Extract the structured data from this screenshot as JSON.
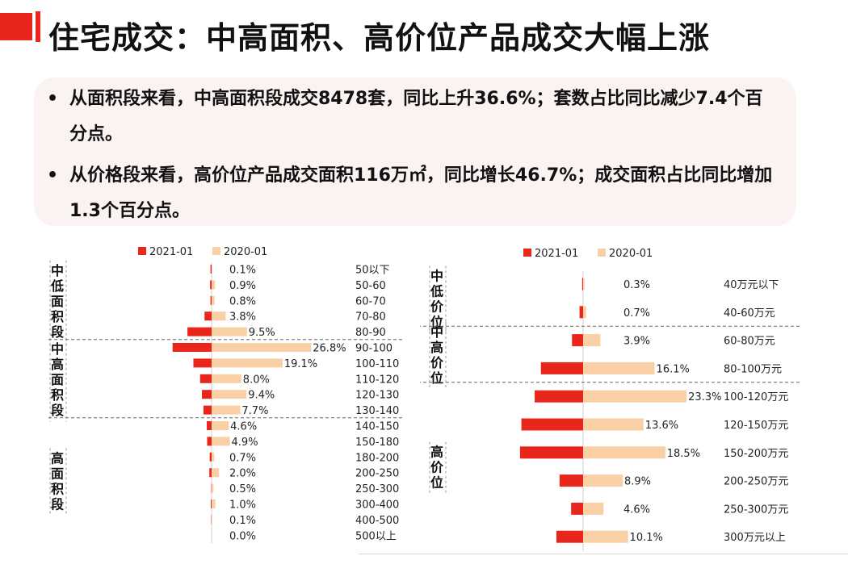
{
  "title": "住宅成交：中高面积、高价位产品成交大幅上涨",
  "bullets": [
    "从面积段来看，中高面积段成交8478套，同比上升36.6%；套数占比同比减少7.4个百分点。",
    "从价格段来看，高价位产品成交面积116万㎡，同比增长46.7%；成交面积占比同比增加1.3个百分点。"
  ],
  "colors": {
    "accent": "#e8261c",
    "series_2021": "#e8261c",
    "series_2020": "#f9cfa6"
  },
  "chart_data": [
    {
      "type": "bar",
      "orientation": "horizontal-diverging",
      "legend": [
        "2021-01",
        "2020-01"
      ],
      "legend_position": "top",
      "categories": [
        "50以下",
        "50-60",
        "60-70",
        "70-80",
        "80-90",
        "90-100",
        "100-110",
        "110-120",
        "120-130",
        "130-140",
        "140-150",
        "150-180",
        "180-200",
        "200-250",
        "250-300",
        "300-400",
        "400-500",
        "500以上"
      ],
      "series": [
        {
          "name": "2021-01",
          "values": [
            0.3,
            0.4,
            0.3,
            1.9,
            6.5,
            10.5,
            4.9,
            3.1,
            2.6,
            2.2,
            1.3,
            1.2,
            0.5,
            0.6,
            0.1,
            0.2,
            0.1,
            0.0
          ]
        },
        {
          "name": "2020-01",
          "values": [
            0.1,
            0.9,
            0.8,
            3.8,
            9.5,
            26.8,
            19.1,
            8.0,
            9.4,
            7.7,
            4.6,
            4.9,
            0.7,
            2.0,
            0.5,
            1.0,
            0.1,
            0.0
          ]
        }
      ],
      "data_labels": [
        "0.1%",
        "0.9%",
        "0.8%",
        "3.8%",
        "9.5%",
        "26.8%",
        "19.1%",
        "8.0%",
        "9.4%",
        "7.7%",
        "4.6%",
        "4.9%",
        "0.7%",
        "2.0%",
        "0.5%",
        "1.0%",
        "0.1%",
        "0.0%"
      ],
      "groups": [
        {
          "label": "中低面积段",
          "from": 0,
          "to": 4
        },
        {
          "label": "中高面积段",
          "from": 5,
          "to": 9
        },
        {
          "label": "高面积段",
          "from": 10,
          "to": 17
        }
      ]
    },
    {
      "type": "bar",
      "orientation": "horizontal-diverging",
      "legend": [
        "2021-01",
        "2020-01"
      ],
      "legend_position": "top",
      "categories": [
        "40万元以下",
        "40-60万元",
        "60-80万元",
        "80-100万元",
        "100-120万元",
        "120-150万元",
        "150-200万元",
        "200-250万元",
        "250-300万元",
        "300万元以上"
      ],
      "series": [
        {
          "name": "2021-01",
          "values": [
            0.2,
            0.8,
            2.5,
            9.5,
            10.9,
            13.9,
            14.2,
            5.3,
            2.7,
            6.0
          ]
        },
        {
          "name": "2020-01",
          "values": [
            0.3,
            0.7,
            3.9,
            16.1,
            23.3,
            13.6,
            18.5,
            8.9,
            4.6,
            10.1
          ]
        }
      ],
      "data_labels": [
        "0.3%",
        "0.7%",
        "3.9%",
        "16.1%",
        "23.3%",
        "13.6%",
        "18.5%",
        "8.9%",
        "4.6%",
        "10.1%"
      ],
      "groups": [
        {
          "label": "中低价位",
          "from": 0,
          "to": 1
        },
        {
          "label": "中高价位",
          "from": 2,
          "to": 3
        },
        {
          "label": "高价位",
          "from": 4,
          "to": 9
        }
      ]
    }
  ]
}
